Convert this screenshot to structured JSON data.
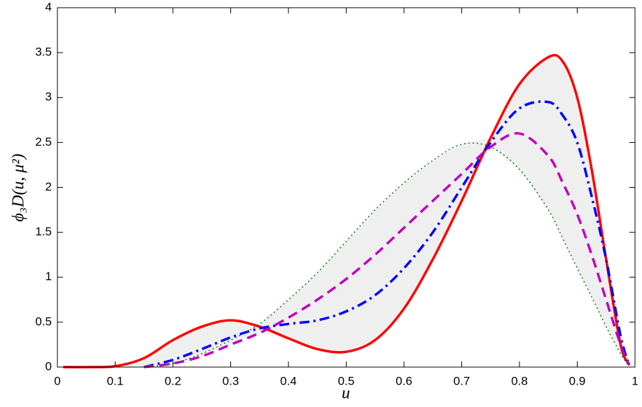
{
  "chart_data": {
    "type": "line",
    "xlabel": "u",
    "ylabel": "ϕ₃D(u, μ²)",
    "x": [
      0.01,
      0.05,
      0.1,
      0.15,
      0.2,
      0.25,
      0.3,
      0.35,
      0.4,
      0.45,
      0.5,
      0.55,
      0.6,
      0.65,
      0.7,
      0.75,
      0.8,
      0.85,
      0.875,
      0.9,
      0.925,
      0.95,
      0.975,
      0.99
    ],
    "series": [
      {
        "color": "#ff0000",
        "dash": "solid",
        "values": [
          0,
          0,
          0.01,
          0.1,
          0.3,
          0.45,
          0.52,
          0.45,
          0.32,
          0.2,
          0.17,
          0.3,
          0.65,
          1.2,
          1.85,
          2.55,
          3.15,
          3.45,
          3.4,
          3.0,
          2.2,
          1.2,
          0.25,
          0.03
        ]
      },
      {
        "color": "#0000ff",
        "dash": "dashdot",
        "values": [
          null,
          null,
          null,
          0,
          0.08,
          0.2,
          0.33,
          0.43,
          0.48,
          0.52,
          0.62,
          0.8,
          1.1,
          1.5,
          2.0,
          2.5,
          2.88,
          2.95,
          2.8,
          2.5,
          1.9,
          1.2,
          0.35,
          0.02
        ]
      },
      {
        "color": "#bf00bf",
        "dash": "dashed",
        "values": [
          null,
          null,
          null,
          0,
          0.04,
          0.12,
          0.25,
          0.38,
          0.55,
          0.75,
          0.98,
          1.25,
          1.55,
          1.85,
          2.15,
          2.45,
          2.6,
          2.35,
          2.05,
          1.7,
          1.25,
          0.75,
          0.25,
          0.02
        ]
      },
      {
        "color": "#007f00",
        "dash": "dotted",
        "values": [
          null,
          null,
          null,
          0,
          0.04,
          0.15,
          0.3,
          0.48,
          0.75,
          1.05,
          1.4,
          1.75,
          2.05,
          2.3,
          2.48,
          2.45,
          2.2,
          1.75,
          1.43,
          1.1,
          0.78,
          0.45,
          0.15,
          0
        ]
      }
    ],
    "shade_color": "#efefef",
    "xlim": [
      0,
      1
    ],
    "xticks": [
      0,
      0.1,
      0.2,
      0.3,
      0.4,
      0.5,
      0.6,
      0.7,
      0.8,
      0.9,
      1
    ],
    "ylim": [
      0,
      4
    ],
    "yticks": [
      0,
      0.5,
      1,
      1.5,
      2,
      2.5,
      3,
      3.5,
      4
    ],
    "grid": false
  }
}
